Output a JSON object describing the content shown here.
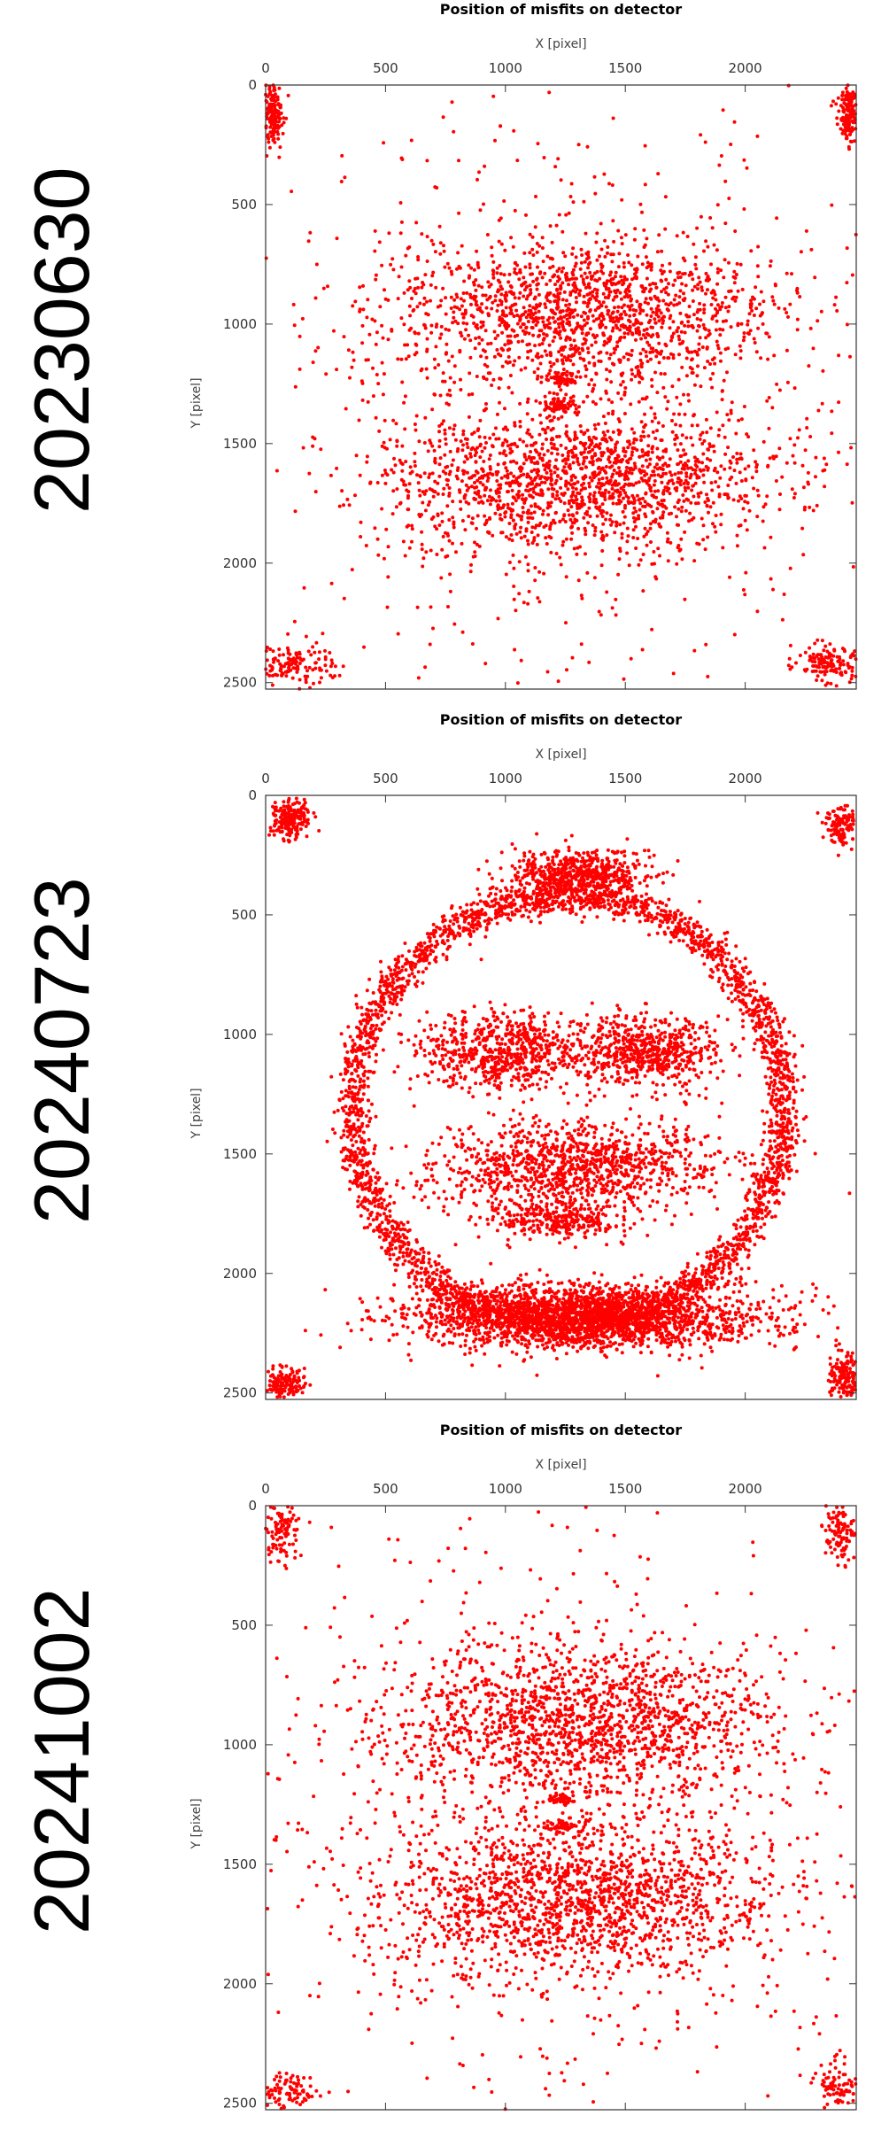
{
  "colors": {
    "points": "#ff0000",
    "frame": "#333333"
  },
  "panels": [
    {
      "date_label": "20230630"
    },
    {
      "date_label": "20240723"
    },
    {
      "date_label": "20241002"
    }
  ],
  "chart_data": [
    {
      "type": "scatter",
      "title": "Position of misfits on detector",
      "xlabel": "X [pixel]",
      "ylabel": "Y [pixel]",
      "xlim": [
        0,
        2463
      ],
      "ylim": [
        0,
        2527
      ],
      "y_inverted": true,
      "x_axis_position": "top",
      "xticks": [
        0,
        500,
        1000,
        1500,
        2000
      ],
      "yticks": [
        0,
        500,
        1000,
        1500,
        2000,
        2500
      ],
      "grid": false,
      "series": [
        {
          "points_note_values_only": true,
          "clusters": [
            {
              "cx": 30,
              "cy": 120,
              "rx": 40,
              "ry": 150,
              "n": 180
            },
            {
              "cx": 2430,
              "cy": 100,
              "rx": 40,
              "ry": 120,
              "n": 170
            },
            {
              "cx": 120,
              "cy": 2420,
              "rx": 160,
              "ry": 90,
              "n": 150
            },
            {
              "cx": 2350,
              "cy": 2420,
              "rx": 140,
              "ry": 80,
              "n": 140
            },
            {
              "cx": 1330,
              "cy": 950,
              "rx": 800,
              "ry": 300,
              "n": 1400
            },
            {
              "cx": 1300,
              "cy": 1650,
              "rx": 800,
              "ry": 300,
              "n": 1500
            },
            {
              "cx": 1240,
              "cy": 1230,
              "rx": 60,
              "ry": 25,
              "n": 60
            },
            {
              "cx": 1230,
              "cy": 1340,
              "rx": 60,
              "ry": 25,
              "n": 60
            },
            {
              "cx": 1230,
              "cy": 1300,
              "rx": 1200,
              "ry": 1200,
              "n": 700
            }
          ]
        }
      ]
    },
    {
      "type": "scatter",
      "title": "Position of misfits on detector",
      "xlabel": "X [pixel]",
      "ylabel": "Y [pixel]",
      "xlim": [
        0,
        2463
      ],
      "ylim": [
        0,
        2527
      ],
      "y_inverted": true,
      "x_axis_position": "top",
      "xticks": [
        0,
        500,
        1000,
        1500,
        2000
      ],
      "yticks": [
        0,
        500,
        1000,
        1500,
        2000,
        2500
      ],
      "grid": false,
      "series": [
        {
          "clusters": [
            {
              "cx": 100,
              "cy": 100,
              "rx": 90,
              "ry": 80,
              "n": 220
            },
            {
              "cx": 2400,
              "cy": 130,
              "rx": 60,
              "ry": 80,
              "n": 120
            },
            {
              "cx": 80,
              "cy": 2460,
              "rx": 80,
              "ry": 60,
              "n": 150
            },
            {
              "cx": 2410,
              "cy": 2430,
              "rx": 60,
              "ry": 90,
              "n": 160
            },
            {
              "cx": 1300,
              "cy": 330,
              "rx": 300,
              "ry": 100,
              "n": 600
            },
            {
              "cx": 1330,
              "cy": 2180,
              "rx": 700,
              "ry": 130,
              "n": 2400
            },
            {
              "cx": 1000,
              "cy": 1070,
              "rx": 350,
              "ry": 160,
              "n": 700
            },
            {
              "cx": 1600,
              "cy": 1070,
              "rx": 300,
              "ry": 150,
              "n": 600
            },
            {
              "cx": 1300,
              "cy": 1550,
              "rx": 600,
              "ry": 180,
              "n": 1100
            },
            {
              "cx": 1200,
              "cy": 1780,
              "rx": 300,
              "ry": 80,
              "n": 300
            }
          ],
          "rings": [
            {
              "cx": 1260,
              "cy": 1320,
              "r": 900,
              "width": 70,
              "n": 3200
            }
          ]
        }
      ]
    },
    {
      "type": "scatter",
      "title": "Position of misfits on detector",
      "xlabel": "X [pixel]",
      "ylabel": "Y [pixel]",
      "xlim": [
        0,
        2463
      ],
      "ylim": [
        0,
        2527
      ],
      "y_inverted": true,
      "x_axis_position": "top",
      "xticks": [
        0,
        500,
        1000,
        1500,
        2000
      ],
      "yticks": [
        0,
        500,
        1000,
        1500,
        2000,
        2500
      ],
      "grid": false,
      "series": [
        {
          "clusters": [
            {
              "cx": 60,
              "cy": 100,
              "rx": 80,
              "ry": 150,
              "n": 120
            },
            {
              "cx": 2400,
              "cy": 100,
              "rx": 80,
              "ry": 120,
              "n": 110
            },
            {
              "cx": 100,
              "cy": 2450,
              "rx": 120,
              "ry": 80,
              "n": 90
            },
            {
              "cx": 2380,
              "cy": 2430,
              "rx": 100,
              "ry": 90,
              "n": 90
            },
            {
              "cx": 1320,
              "cy": 900,
              "rx": 820,
              "ry": 320,
              "n": 1500
            },
            {
              "cx": 1300,
              "cy": 1650,
              "rx": 820,
              "ry": 320,
              "n": 1600
            },
            {
              "cx": 1230,
              "cy": 1230,
              "rx": 60,
              "ry": 25,
              "n": 50
            },
            {
              "cx": 1230,
              "cy": 1340,
              "rx": 60,
              "ry": 25,
              "n": 50
            },
            {
              "cx": 1230,
              "cy": 1300,
              "rx": 1200,
              "ry": 1200,
              "n": 700
            }
          ]
        }
      ]
    }
  ]
}
